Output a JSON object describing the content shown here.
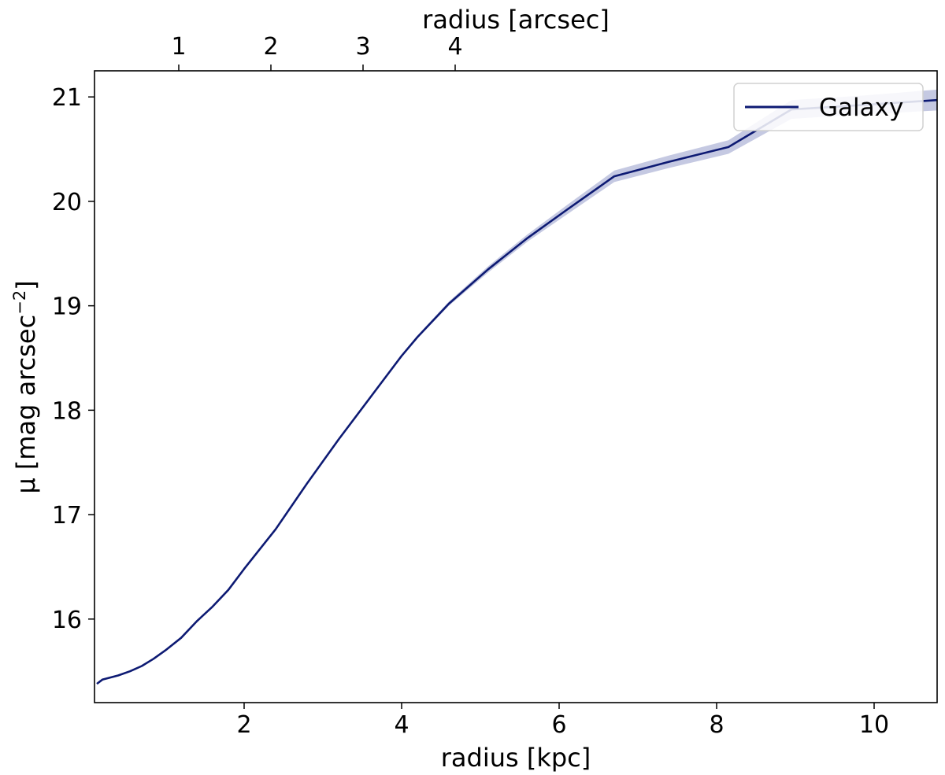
{
  "chart_data": {
    "type": "line",
    "xlabel": "radius [kpc]",
    "x2label": "radius [arcsec]",
    "ylabel_main": "μ [mag arcsec",
    "ylabel_sup": "−2",
    "ylabel_close": "]",
    "xlim": [
      0.1,
      10.8
    ],
    "ylim": [
      21.25,
      15.2
    ],
    "y_inverted": true,
    "x_ticks": [
      2,
      4,
      6,
      8,
      10
    ],
    "x_tick_labels": [
      "2",
      "4",
      "6",
      "8",
      "10"
    ],
    "y_ticks": [
      16,
      17,
      18,
      19,
      20,
      21
    ],
    "y_tick_labels": [
      "16",
      "17",
      "18",
      "19",
      "20",
      "21"
    ],
    "x2_ticks_kpc": [
      1.17,
      2.34,
      3.51,
      4.68
    ],
    "x2_tick_labels": [
      "1",
      "2",
      "3",
      "4"
    ],
    "legend_position": "top-right",
    "series": [
      {
        "name": "Galaxy",
        "color": "#0d1a73",
        "band_color": "#c5c9e2",
        "x": [
          0.13,
          0.2,
          0.3,
          0.4,
          0.55,
          0.7,
          0.85,
          1.0,
          1.2,
          1.4,
          1.6,
          1.8,
          2.0,
          2.4,
          2.8,
          3.2,
          3.6,
          4.0,
          4.2,
          4.6,
          5.1,
          5.6,
          6.1,
          6.7,
          7.4,
          8.15,
          8.95,
          9.8,
          10.8
        ],
        "y": [
          15.38,
          15.42,
          15.44,
          15.46,
          15.5,
          15.55,
          15.62,
          15.7,
          15.82,
          15.98,
          16.12,
          16.28,
          16.48,
          16.86,
          17.3,
          17.72,
          18.12,
          18.52,
          18.7,
          19.02,
          19.35,
          19.65,
          19.92,
          20.24,
          20.38,
          20.52,
          20.88,
          20.92,
          20.97
        ],
        "err": [
          0.0,
          0.0,
          0.0,
          0.0,
          0.0,
          0.0,
          0.0,
          0.0,
          0.0,
          0.0,
          0.0,
          0.0,
          0.0,
          0.0,
          0.0,
          0.0,
          0.0,
          0.01,
          0.015,
          0.02,
          0.03,
          0.035,
          0.045,
          0.055,
          0.06,
          0.065,
          0.09,
          0.09,
          0.1
        ]
      }
    ]
  }
}
